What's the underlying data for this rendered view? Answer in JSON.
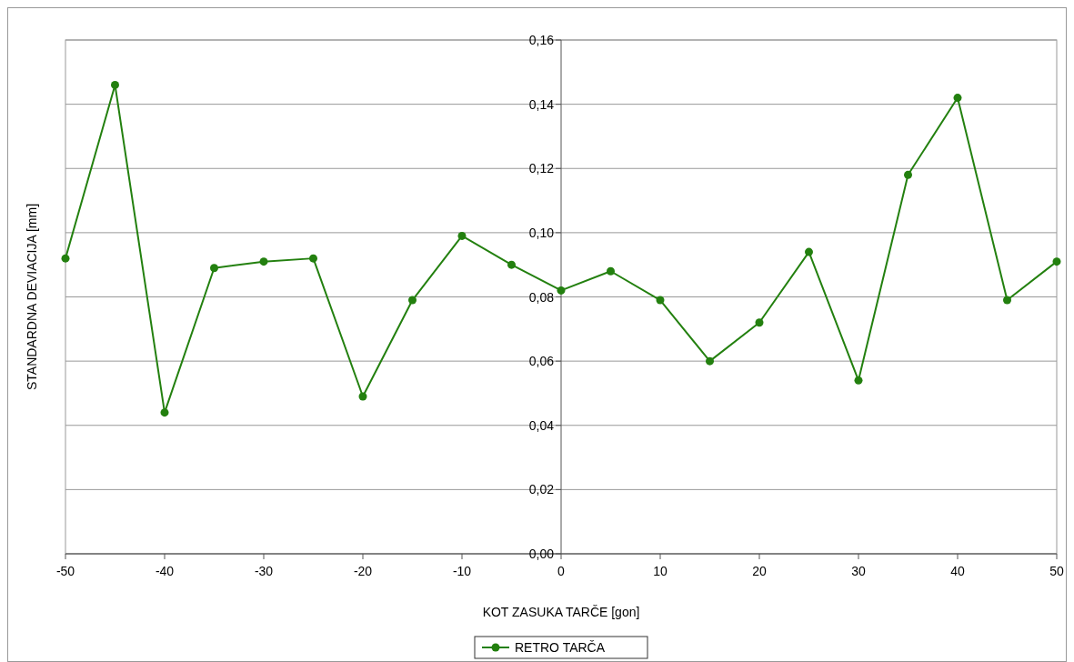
{
  "chart_data": {
    "type": "line",
    "xlabel": "KOT ZASUKA TARČE [gon]",
    "ylabel": "STANDARDNA DEVIACIJA [mm]",
    "x": [
      -50,
      -45,
      -40,
      -35,
      -30,
      -25,
      -20,
      -15,
      -10,
      -5,
      0,
      5,
      10,
      15,
      20,
      25,
      30,
      35,
      40,
      45,
      50
    ],
    "series": [
      {
        "name": "RETRO TARČA",
        "color": "#23800f",
        "values": [
          0.092,
          0.146,
          0.044,
          0.089,
          0.091,
          0.092,
          0.049,
          0.079,
          0.099,
          0.09,
          0.082,
          0.088,
          0.079,
          0.06,
          0.072,
          0.094,
          0.054,
          0.118,
          0.142,
          0.079,
          0.091
        ]
      }
    ],
    "xlim": [
      -50,
      50
    ],
    "xticks": [
      -50,
      -40,
      -30,
      -20,
      -10,
      0,
      10,
      20,
      30,
      40,
      50
    ],
    "ylim": [
      0,
      0.16
    ],
    "yticks": [
      {
        "value": 0,
        "label": "0,00"
      },
      {
        "value": 0.02,
        "label": "0,02"
      },
      {
        "value": 0.04,
        "label": "0,04"
      },
      {
        "value": 0.06,
        "label": "0,06"
      },
      {
        "value": 0.08,
        "label": "0,08"
      },
      {
        "value": 0.1,
        "label": "0,10"
      },
      {
        "value": 0.12,
        "label": "0,12"
      },
      {
        "value": 0.14,
        "label": "0,14"
      },
      {
        "value": 0.16,
        "label": "0,16"
      }
    ],
    "grid": "y",
    "legend": "bottom",
    "marker": "circle",
    "line_style": "solid"
  }
}
